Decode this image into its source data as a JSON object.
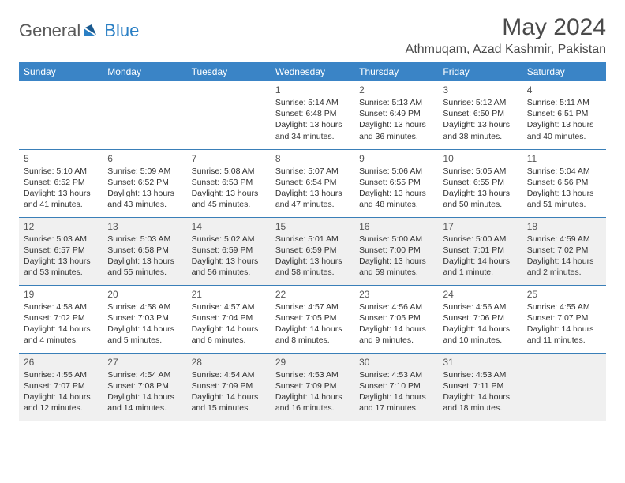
{
  "brand": {
    "part1": "General",
    "part2": "Blue"
  },
  "title": "May 2024",
  "location": "Athmuqam, Azad Kashmir, Pakistan",
  "calendar": {
    "type": "table",
    "header_bg": "#3a84c6",
    "header_fg": "#ffffff",
    "border_color": "#3a7fb8",
    "shade_bg": "#f0f0f0",
    "font_family": "Arial",
    "daynum_fontsize": 12,
    "cell_fontsize": 10.5,
    "columns": [
      "Sunday",
      "Monday",
      "Tuesday",
      "Wednesday",
      "Thursday",
      "Friday",
      "Saturday"
    ],
    "weeks": [
      {
        "shaded": false,
        "days": [
          null,
          null,
          null,
          {
            "n": "1",
            "sr": "5:14 AM",
            "ss": "6:48 PM",
            "dl": "13 hours and 34 minutes."
          },
          {
            "n": "2",
            "sr": "5:13 AM",
            "ss": "6:49 PM",
            "dl": "13 hours and 36 minutes."
          },
          {
            "n": "3",
            "sr": "5:12 AM",
            "ss": "6:50 PM",
            "dl": "13 hours and 38 minutes."
          },
          {
            "n": "4",
            "sr": "5:11 AM",
            "ss": "6:51 PM",
            "dl": "13 hours and 40 minutes."
          }
        ]
      },
      {
        "shaded": false,
        "days": [
          {
            "n": "5",
            "sr": "5:10 AM",
            "ss": "6:52 PM",
            "dl": "13 hours and 41 minutes."
          },
          {
            "n": "6",
            "sr": "5:09 AM",
            "ss": "6:52 PM",
            "dl": "13 hours and 43 minutes."
          },
          {
            "n": "7",
            "sr": "5:08 AM",
            "ss": "6:53 PM",
            "dl": "13 hours and 45 minutes."
          },
          {
            "n": "8",
            "sr": "5:07 AM",
            "ss": "6:54 PM",
            "dl": "13 hours and 47 minutes."
          },
          {
            "n": "9",
            "sr": "5:06 AM",
            "ss": "6:55 PM",
            "dl": "13 hours and 48 minutes."
          },
          {
            "n": "10",
            "sr": "5:05 AM",
            "ss": "6:55 PM",
            "dl": "13 hours and 50 minutes."
          },
          {
            "n": "11",
            "sr": "5:04 AM",
            "ss": "6:56 PM",
            "dl": "13 hours and 51 minutes."
          }
        ]
      },
      {
        "shaded": true,
        "days": [
          {
            "n": "12",
            "sr": "5:03 AM",
            "ss": "6:57 PM",
            "dl": "13 hours and 53 minutes."
          },
          {
            "n": "13",
            "sr": "5:03 AM",
            "ss": "6:58 PM",
            "dl": "13 hours and 55 minutes."
          },
          {
            "n": "14",
            "sr": "5:02 AM",
            "ss": "6:59 PM",
            "dl": "13 hours and 56 minutes."
          },
          {
            "n": "15",
            "sr": "5:01 AM",
            "ss": "6:59 PM",
            "dl": "13 hours and 58 minutes."
          },
          {
            "n": "16",
            "sr": "5:00 AM",
            "ss": "7:00 PM",
            "dl": "13 hours and 59 minutes."
          },
          {
            "n": "17",
            "sr": "5:00 AM",
            "ss": "7:01 PM",
            "dl": "14 hours and 1 minute."
          },
          {
            "n": "18",
            "sr": "4:59 AM",
            "ss": "7:02 PM",
            "dl": "14 hours and 2 minutes."
          }
        ]
      },
      {
        "shaded": false,
        "days": [
          {
            "n": "19",
            "sr": "4:58 AM",
            "ss": "7:02 PM",
            "dl": "14 hours and 4 minutes."
          },
          {
            "n": "20",
            "sr": "4:58 AM",
            "ss": "7:03 PM",
            "dl": "14 hours and 5 minutes."
          },
          {
            "n": "21",
            "sr": "4:57 AM",
            "ss": "7:04 PM",
            "dl": "14 hours and 6 minutes."
          },
          {
            "n": "22",
            "sr": "4:57 AM",
            "ss": "7:05 PM",
            "dl": "14 hours and 8 minutes."
          },
          {
            "n": "23",
            "sr": "4:56 AM",
            "ss": "7:05 PM",
            "dl": "14 hours and 9 minutes."
          },
          {
            "n": "24",
            "sr": "4:56 AM",
            "ss": "7:06 PM",
            "dl": "14 hours and 10 minutes."
          },
          {
            "n": "25",
            "sr": "4:55 AM",
            "ss": "7:07 PM",
            "dl": "14 hours and 11 minutes."
          }
        ]
      },
      {
        "shaded": true,
        "days": [
          {
            "n": "26",
            "sr": "4:55 AM",
            "ss": "7:07 PM",
            "dl": "14 hours and 12 minutes."
          },
          {
            "n": "27",
            "sr": "4:54 AM",
            "ss": "7:08 PM",
            "dl": "14 hours and 14 minutes."
          },
          {
            "n": "28",
            "sr": "4:54 AM",
            "ss": "7:09 PM",
            "dl": "14 hours and 15 minutes."
          },
          {
            "n": "29",
            "sr": "4:53 AM",
            "ss": "7:09 PM",
            "dl": "14 hours and 16 minutes."
          },
          {
            "n": "30",
            "sr": "4:53 AM",
            "ss": "7:10 PM",
            "dl": "14 hours and 17 minutes."
          },
          {
            "n": "31",
            "sr": "4:53 AM",
            "ss": "7:11 PM",
            "dl": "14 hours and 18 minutes."
          },
          null
        ]
      }
    ]
  }
}
